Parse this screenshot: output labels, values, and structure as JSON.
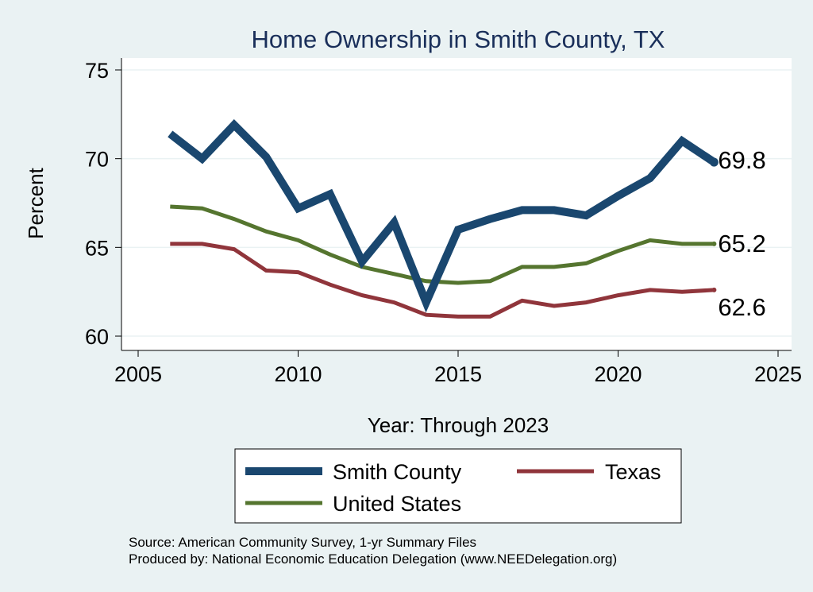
{
  "chart_data": {
    "type": "line",
    "title": "Home Ownership in Smith County, TX",
    "xlabel": "Year: Through 2023",
    "ylabel": "Percent",
    "xlim": [
      2005,
      2025
    ],
    "ylim": [
      60,
      75
    ],
    "x_ticks": [
      "2005",
      "2010",
      "2015",
      "2020",
      "2025"
    ],
    "y_ticks": [
      "60",
      "65",
      "70",
      "75"
    ],
    "x": [
      2006,
      2007,
      2008,
      2009,
      2010,
      2011,
      2012,
      2013,
      2014,
      2015,
      2016,
      2017,
      2018,
      2019,
      2020,
      2021,
      2022,
      2023
    ],
    "series": [
      {
        "name": "Smith County",
        "color": "#1a476f",
        "values": [
          71.4,
          70.0,
          71.9,
          70.1,
          67.2,
          68.0,
          64.2,
          66.4,
          61.9,
          66.0,
          66.6,
          67.1,
          67.1,
          66.8,
          67.9,
          68.9,
          71.0,
          69.8
        ],
        "end_label": "69.8"
      },
      {
        "name": "Texas",
        "color": "#90353b",
        "values": [
          65.2,
          65.2,
          64.9,
          63.7,
          63.6,
          62.9,
          62.3,
          61.9,
          61.2,
          61.1,
          61.1,
          62.0,
          61.7,
          61.9,
          62.3,
          62.6,
          62.5,
          62.6
        ],
        "end_label": "62.6"
      },
      {
        "name": "United States",
        "color": "#55752f",
        "values": [
          67.3,
          67.2,
          66.6,
          65.9,
          65.4,
          64.6,
          63.9,
          63.5,
          63.1,
          63.0,
          63.1,
          63.9,
          63.9,
          64.1,
          64.8,
          65.4,
          65.2,
          65.2
        ],
        "end_label": "65.2"
      }
    ],
    "legend": {
      "position": "bottom",
      "items": [
        "Smith County",
        "Texas",
        "United States"
      ]
    },
    "notes": [
      "Source: American Community Survey, 1-yr Summary Files",
      "Produced by: National Economic Education Delegation (www.NEEDelegation.org)"
    ]
  }
}
